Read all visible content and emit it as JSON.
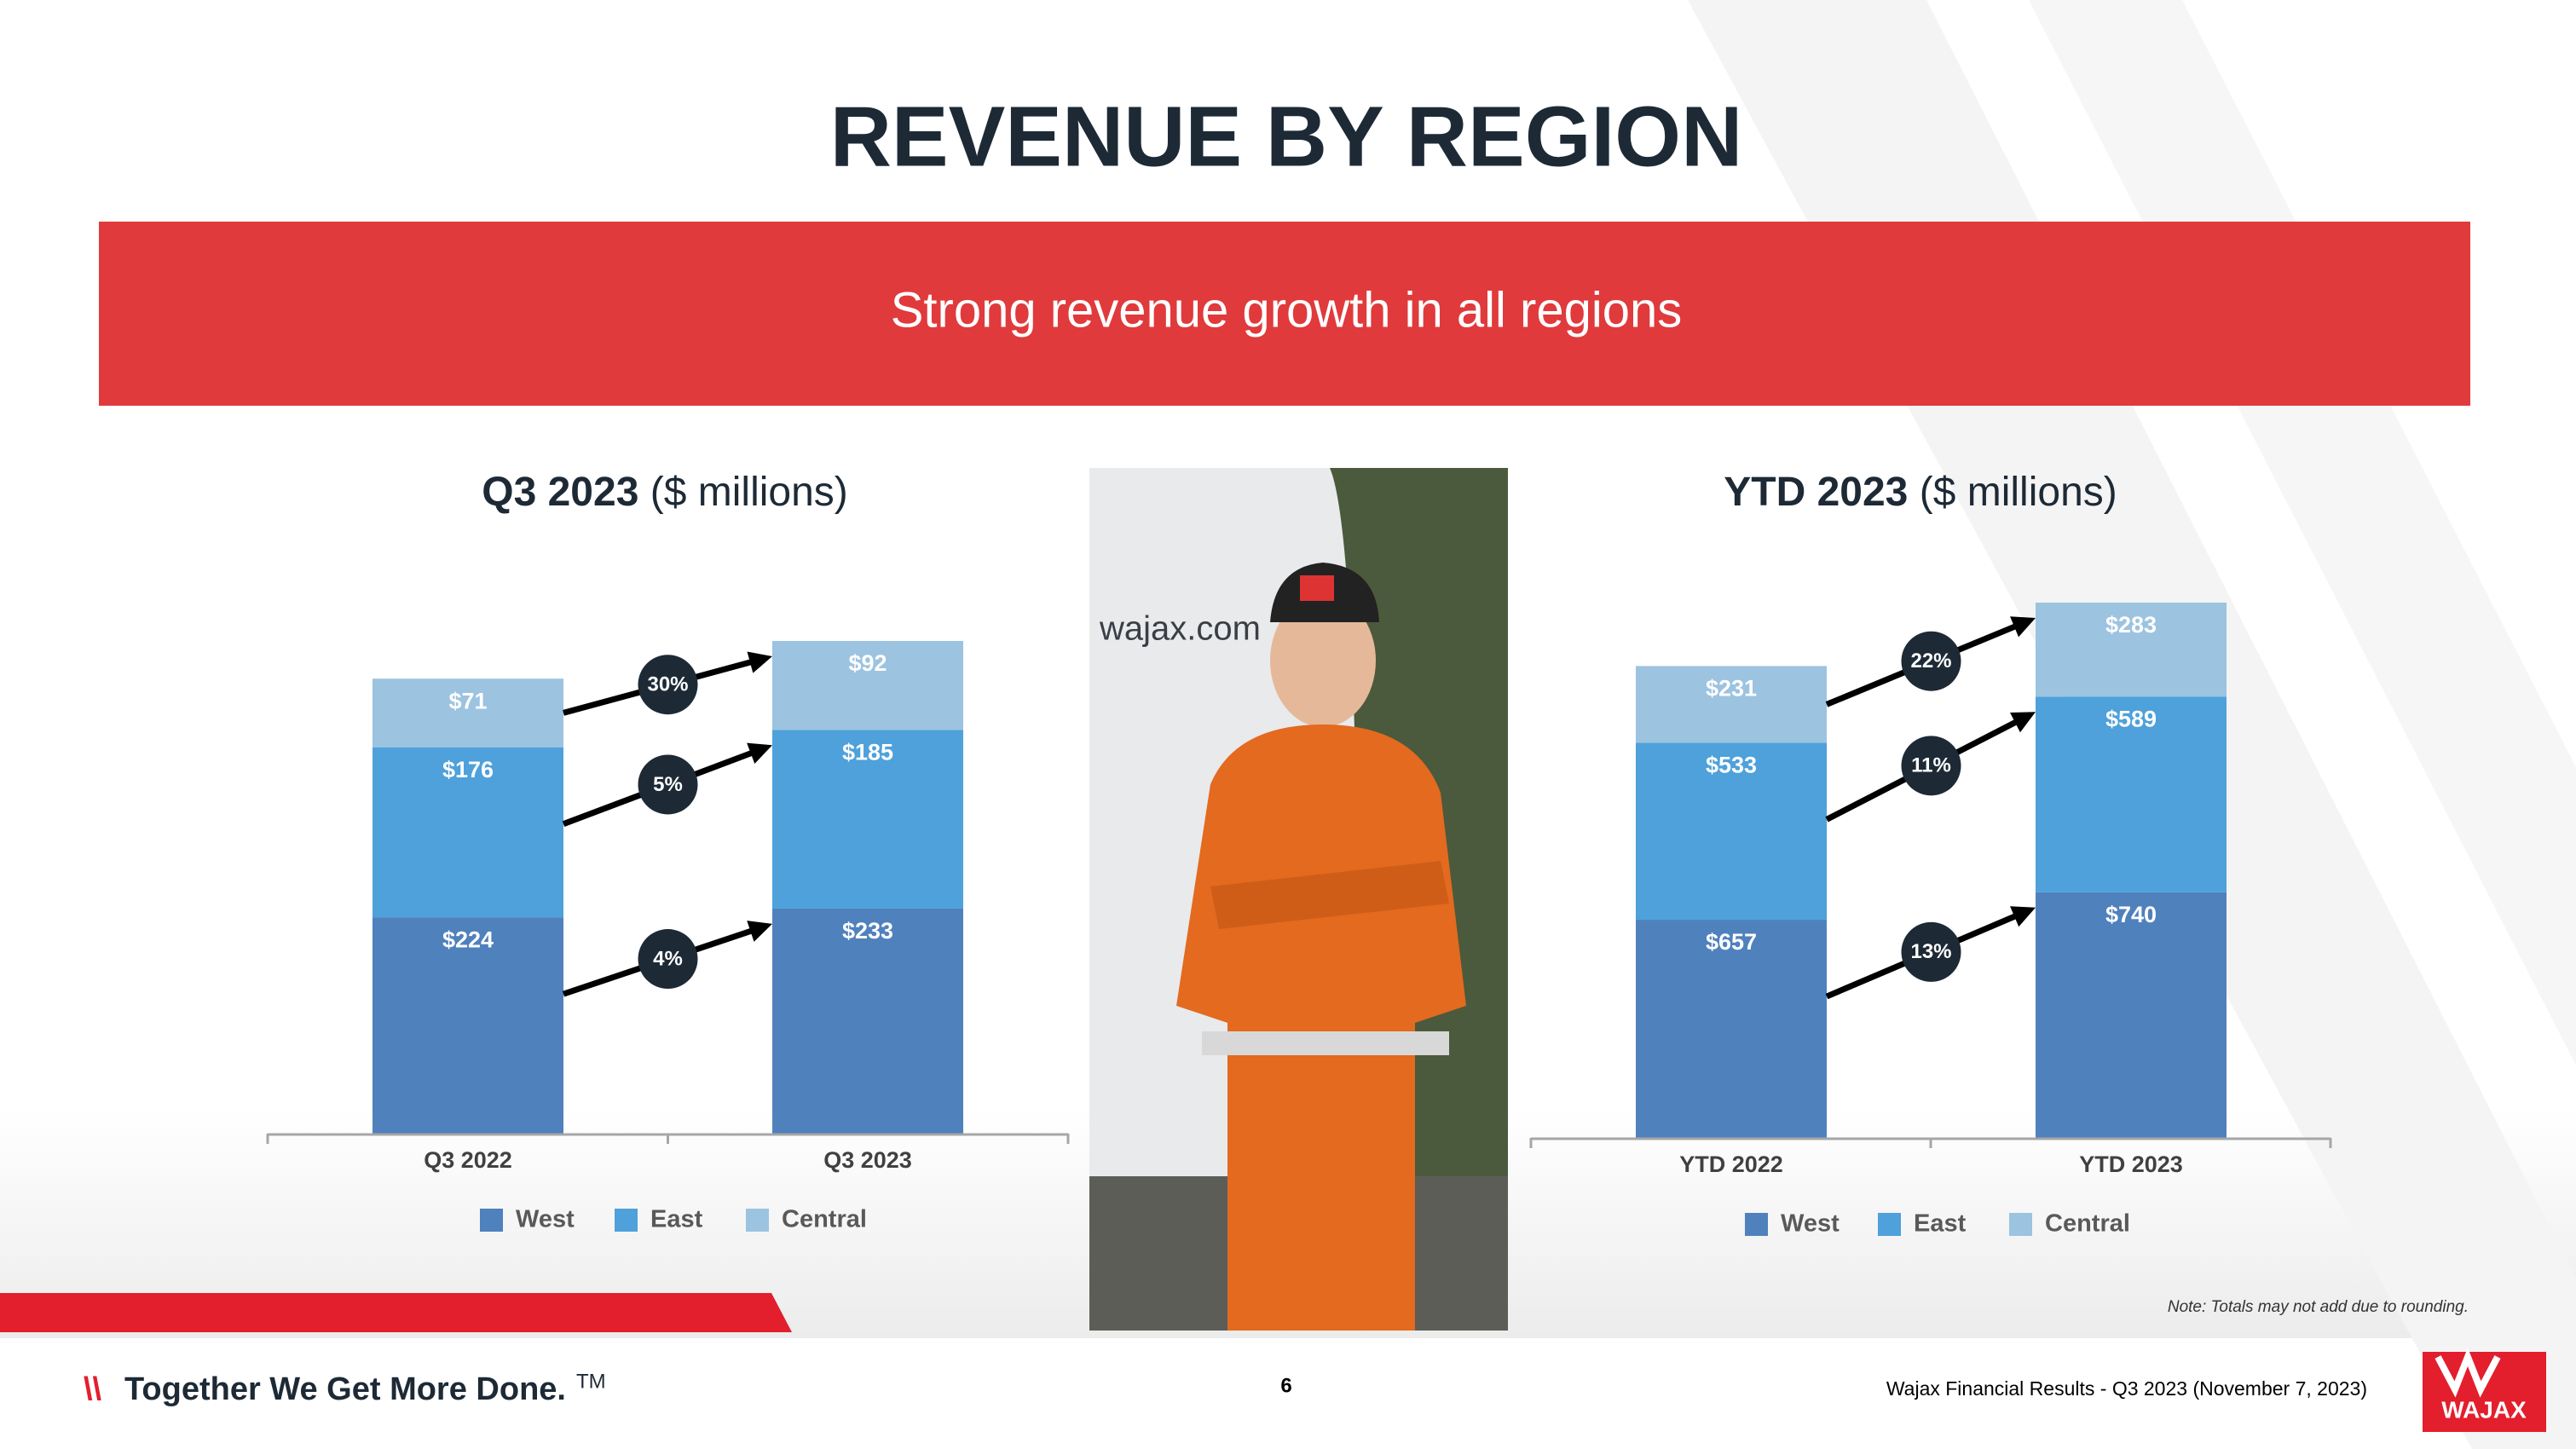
{
  "slide": {
    "title": "REVENUE BY REGION",
    "banner": "Strong revenue growth in all regions",
    "note": "Note: Totals may not add due to rounding.",
    "footer": {
      "mark": "\\\\",
      "tagline": "Together We Get More Done.",
      "trademark": "TM",
      "page": 6,
      "source": "Wajax Financial Results - Q3 2023 (November 7, 2023)",
      "logo": "WAJAX"
    }
  },
  "chart_data": [
    {
      "type": "bar",
      "stacked": true,
      "title": "Q3 2023",
      "title_unit": "($ millions)",
      "categories": [
        "Q3 2022",
        "Q3 2023"
      ],
      "series": [
        {
          "name": "West",
          "color": "#4f81bd",
          "values": [
            224,
            233
          ],
          "value_labels": [
            "$224",
            "$233"
          ]
        },
        {
          "name": "East",
          "color": "#4ea1da",
          "values": [
            176,
            185
          ],
          "value_labels": [
            "$176",
            "$185"
          ]
        },
        {
          "name": "Central",
          "color": "#9cc3e0",
          "values": [
            71,
            92
          ],
          "value_labels": [
            "$71",
            "$92"
          ]
        }
      ],
      "annotations": [
        "4%",
        "5%",
        "30%"
      ]
    },
    {
      "type": "bar",
      "stacked": true,
      "title": "YTD 2023",
      "title_unit": "($ millions)",
      "categories": [
        "YTD 2022",
        "YTD 2023"
      ],
      "series": [
        {
          "name": "West",
          "color": "#4f81bd",
          "values": [
            657,
            740
          ],
          "value_labels": [
            "$657",
            "$740"
          ]
        },
        {
          "name": "East",
          "color": "#4ea1da",
          "values": [
            533,
            589
          ],
          "value_labels": [
            "$533",
            "$589"
          ]
        },
        {
          "name": "Central",
          "color": "#9cc3e0",
          "values": [
            231,
            283
          ],
          "value_labels": [
            "$231",
            "$283"
          ]
        }
      ],
      "annotations": [
        "13%",
        "11%",
        "22%"
      ]
    }
  ]
}
